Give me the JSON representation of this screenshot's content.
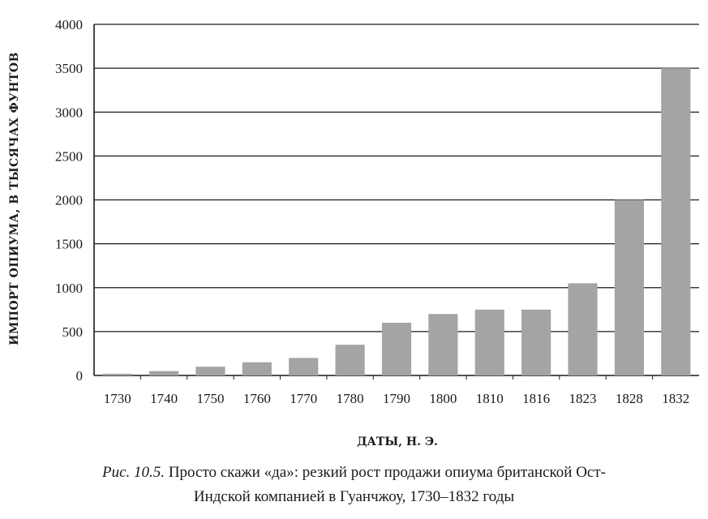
{
  "chart_data": {
    "type": "bar",
    "categories": [
      "1730",
      "1740",
      "1750",
      "1760",
      "1770",
      "1780",
      "1790",
      "1800",
      "1810",
      "1816",
      "1823",
      "1828",
      "1832"
    ],
    "values": [
      20,
      50,
      100,
      150,
      200,
      350,
      600,
      700,
      750,
      750,
      1050,
      2000,
      3500
    ],
    "ylabel": "ИМПОРТ ОПИУМА, В ТЫСЯЧАХ ФУНТОВ",
    "xlabel": "ДАТЫ, Н. Э.",
    "ylim": [
      0,
      4000
    ],
    "yticks": [
      0,
      500,
      1000,
      1500,
      2000,
      2500,
      3000,
      3500,
      4000
    ],
    "grid": true,
    "colors": {
      "bar": "#a4a4a4",
      "grid": "#1a1a1a",
      "text": "#1a1a1a"
    }
  },
  "caption": {
    "figure_ref": "Рис. 10.5.",
    "line1": "Просто скажи «да»: резкий рост продажи опиума британской Ост-",
    "line2": "Индской компанией в Гуанчжоу, 1730–1832 годы"
  }
}
